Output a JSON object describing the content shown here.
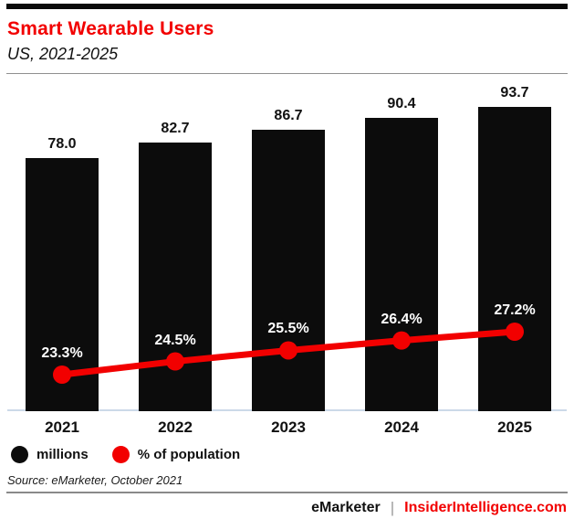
{
  "header": {
    "top_rule_color": "#0a0a0a"
  },
  "chart_data": {
    "type": "bar",
    "title": "Smart Wearable Users",
    "subtitle": "US, 2021-2025",
    "categories": [
      "2021",
      "2022",
      "2023",
      "2024",
      "2025"
    ],
    "series": [
      {
        "name": "millions",
        "type": "bar",
        "color": "#0c0c0c",
        "values": [
          78.0,
          82.7,
          86.7,
          90.4,
          93.7
        ],
        "labels": [
          "78.0",
          "82.7",
          "86.7",
          "90.4",
          "93.7"
        ]
      },
      {
        "name": "% of population",
        "type": "line",
        "color": "#f20000",
        "values": [
          23.3,
          24.5,
          25.5,
          26.4,
          27.2
        ],
        "labels": [
          "23.3%",
          "24.5%",
          "25.5%",
          "26.4%",
          "27.2%"
        ]
      }
    ],
    "bar_axis_range": [
      0,
      100
    ],
    "grid": false,
    "legend_position": "bottom-left"
  },
  "legend": [
    {
      "label": "millions",
      "color": "#0c0c0c"
    },
    {
      "label": "% of population",
      "color": "#f20000"
    }
  ],
  "footer": {
    "source": "Source: eMarketer, October 2021",
    "brand_left": "eMarketer",
    "separator": "|",
    "brand_right": "InsiderIntelligence.com"
  }
}
